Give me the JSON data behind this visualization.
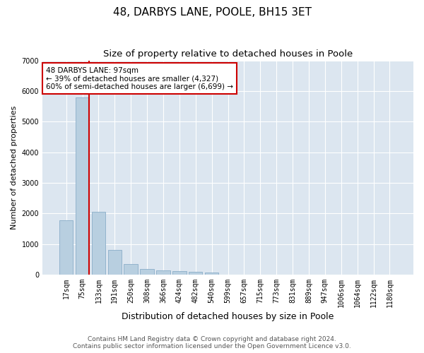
{
  "title": "48, DARBYS LANE, POOLE, BH15 3ET",
  "subtitle": "Size of property relative to detached houses in Poole",
  "xlabel": "Distribution of detached houses by size in Poole",
  "ylabel": "Number of detached properties",
  "categories": [
    "17sqm",
    "75sqm",
    "133sqm",
    "191sqm",
    "250sqm",
    "308sqm",
    "366sqm",
    "424sqm",
    "482sqm",
    "540sqm",
    "599sqm",
    "657sqm",
    "715sqm",
    "773sqm",
    "831sqm",
    "889sqm",
    "947sqm",
    "1006sqm",
    "1064sqm",
    "1122sqm",
    "1180sqm"
  ],
  "values": [
    1780,
    5780,
    2060,
    820,
    340,
    195,
    135,
    110,
    90,
    75,
    0,
    0,
    0,
    0,
    0,
    0,
    0,
    0,
    0,
    0,
    0
  ],
  "bar_color": "#b8cfe0",
  "bar_edge_color": "#8aadc8",
  "property_line_color": "#cc0000",
  "property_line_x": 1.42,
  "annotation_text": "48 DARBYS LANE: 97sqm\n← 39% of detached houses are smaller (4,327)\n60% of semi-detached houses are larger (6,699) →",
  "annotation_box_color": "#ffffff",
  "annotation_box_edge_color": "#cc0000",
  "ylim": [
    0,
    7000
  ],
  "yticks": [
    0,
    1000,
    2000,
    3000,
    4000,
    5000,
    6000,
    7000
  ],
  "background_color": "#dce6f0",
  "footer_line1": "Contains HM Land Registry data © Crown copyright and database right 2024.",
  "footer_line2": "Contains public sector information licensed under the Open Government Licence v3.0.",
  "title_fontsize": 11,
  "subtitle_fontsize": 9.5,
  "xlabel_fontsize": 9,
  "ylabel_fontsize": 8,
  "tick_fontsize": 7,
  "footer_fontsize": 6.5
}
